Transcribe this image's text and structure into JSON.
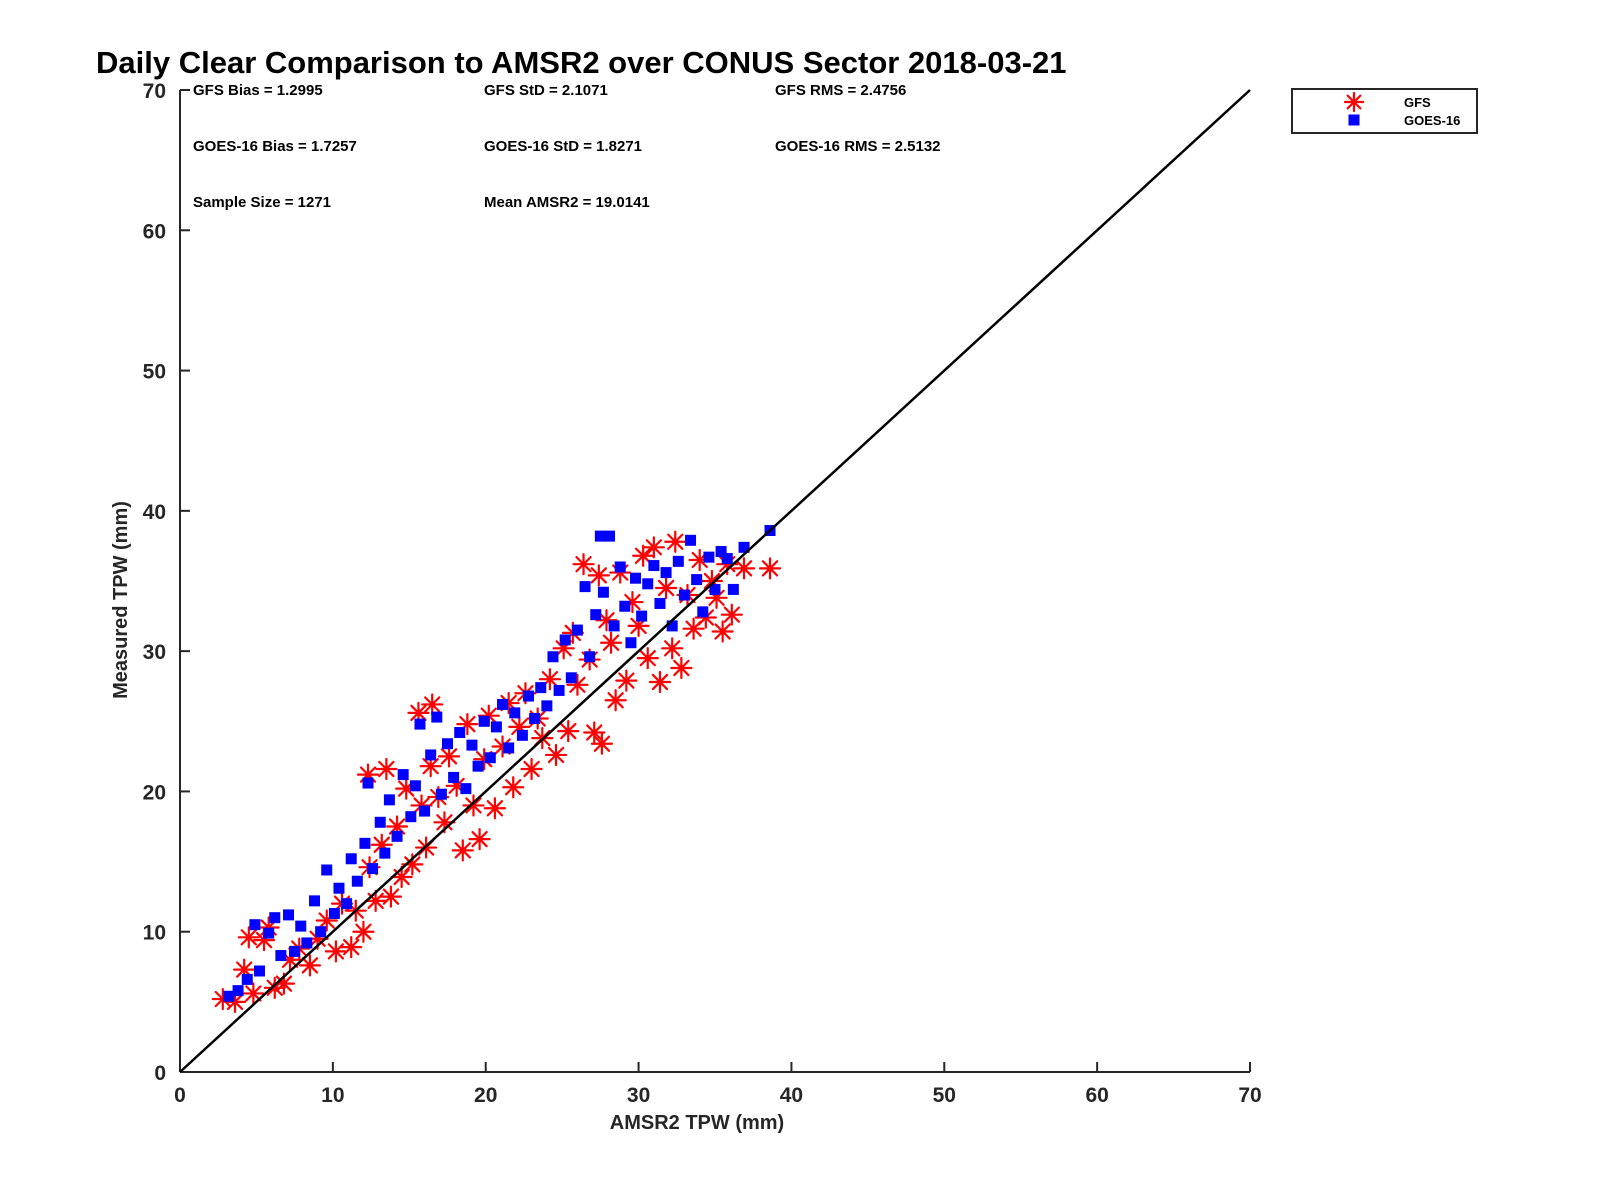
{
  "chart_data": {
    "type": "scatter",
    "title": "Daily Clear Comparison to AMSR2 over CONUS Sector 2018-03-21",
    "xlabel": "AMSR2 TPW (mm)",
    "ylabel": "Measured TPW (mm)",
    "xlim": [
      0,
      70
    ],
    "ylim": [
      0,
      70
    ],
    "xticks": [
      "0",
      "10",
      "20",
      "30",
      "40",
      "50",
      "60",
      "70"
    ],
    "yticks": [
      "0",
      "10",
      "20",
      "30",
      "40",
      "50",
      "60",
      "70"
    ],
    "reference_line": {
      "x": [
        0,
        70
      ],
      "y": [
        0,
        70
      ],
      "color": "#000000"
    },
    "legend_position": "outside-top-right",
    "stats": [
      {
        "label": "GFS Bias = 1.2995"
      },
      {
        "label": "GFS StD = 2.1071"
      },
      {
        "label": "GFS RMS = 2.4756"
      },
      {
        "label": "GOES-16 Bias = 1.7257"
      },
      {
        "label": "GOES-16 StD = 1.8271"
      },
      {
        "label": "GOES-16 RMS = 2.5132"
      },
      {
        "label": "Sample Size = 1271"
      },
      {
        "label": "Mean AMSR2 = 19.0141"
      }
    ],
    "series": [
      {
        "name": "GFS",
        "marker": "asterisk",
        "color": "#ff0000",
        "points": [
          [
            2.8,
            5.2
          ],
          [
            3.6,
            5.0
          ],
          [
            4.2,
            7.3
          ],
          [
            4.5,
            9.6
          ],
          [
            4.8,
            5.6
          ],
          [
            5.5,
            9.4
          ],
          [
            5.8,
            10.3
          ],
          [
            6.2,
            6.0
          ],
          [
            6.8,
            6.3
          ],
          [
            7.2,
            8.0
          ],
          [
            7.8,
            8.8
          ],
          [
            8.5,
            7.6
          ],
          [
            9.0,
            9.5
          ],
          [
            9.6,
            10.8
          ],
          [
            10.2,
            8.6
          ],
          [
            10.6,
            12.0
          ],
          [
            11.2,
            8.9
          ],
          [
            11.5,
            11.5
          ],
          [
            12.0,
            10.0
          ],
          [
            12.4,
            14.6
          ],
          [
            12.3,
            21.2
          ],
          [
            12.8,
            12.2
          ],
          [
            13.2,
            16.2
          ],
          [
            13.5,
            21.6
          ],
          [
            13.8,
            12.5
          ],
          [
            14.2,
            17.5
          ],
          [
            14.5,
            13.9
          ],
          [
            14.8,
            20.2
          ],
          [
            15.2,
            14.8
          ],
          [
            15.6,
            25.6
          ],
          [
            15.8,
            19.0
          ],
          [
            16.1,
            16.0
          ],
          [
            16.5,
            26.2
          ],
          [
            16.4,
            21.8
          ],
          [
            16.9,
            19.6
          ],
          [
            17.3,
            17.8
          ],
          [
            17.6,
            22.5
          ],
          [
            18.1,
            20.4
          ],
          [
            18.5,
            15.8
          ],
          [
            18.8,
            24.8
          ],
          [
            19.2,
            19.0
          ],
          [
            19.6,
            16.6
          ],
          [
            19.9,
            22.3
          ],
          [
            20.2,
            25.4
          ],
          [
            20.6,
            18.8
          ],
          [
            21.1,
            23.2
          ],
          [
            21.5,
            26.3
          ],
          [
            21.8,
            20.3
          ],
          [
            22.2,
            24.6
          ],
          [
            22.6,
            27.0
          ],
          [
            23.0,
            21.6
          ],
          [
            23.4,
            25.2
          ],
          [
            23.7,
            23.8
          ],
          [
            24.2,
            28.0
          ],
          [
            24.6,
            22.6
          ],
          [
            25.1,
            30.2
          ],
          [
            25.4,
            24.3
          ],
          [
            25.7,
            31.3
          ],
          [
            26.0,
            27.6
          ],
          [
            26.4,
            36.2
          ],
          [
            26.8,
            29.4
          ],
          [
            27.1,
            24.2
          ],
          [
            27.4,
            35.4
          ],
          [
            27.6,
            23.4
          ],
          [
            27.9,
            32.2
          ],
          [
            28.2,
            30.6
          ],
          [
            28.5,
            26.5
          ],
          [
            28.8,
            35.6
          ],
          [
            29.2,
            27.9
          ],
          [
            29.6,
            33.5
          ],
          [
            30.0,
            31.8
          ],
          [
            30.3,
            36.8
          ],
          [
            30.6,
            29.5
          ],
          [
            31.0,
            37.4
          ],
          [
            31.4,
            27.8
          ],
          [
            31.8,
            34.5
          ],
          [
            32.2,
            30.2
          ],
          [
            32.4,
            37.8
          ],
          [
            32.8,
            28.8
          ],
          [
            33.2,
            34.0
          ],
          [
            33.6,
            31.6
          ],
          [
            34.0,
            36.5
          ],
          [
            34.4,
            32.4
          ],
          [
            34.8,
            35.0
          ],
          [
            35.1,
            33.8
          ],
          [
            35.5,
            31.4
          ],
          [
            35.8,
            36.2
          ],
          [
            36.1,
            32.6
          ],
          [
            36.9,
            35.9
          ],
          [
            38.6,
            35.9
          ]
        ]
      },
      {
        "name": "GOES-16",
        "marker": "square",
        "color": "#0000ff",
        "points": [
          [
            3.2,
            5.4
          ],
          [
            3.8,
            5.8
          ],
          [
            4.4,
            6.6
          ],
          [
            4.9,
            10.5
          ],
          [
            5.2,
            7.2
          ],
          [
            5.8,
            9.9
          ],
          [
            6.2,
            11.0
          ],
          [
            6.6,
            8.3
          ],
          [
            7.1,
            11.2
          ],
          [
            7.5,
            8.6
          ],
          [
            7.9,
            10.4
          ],
          [
            8.3,
            9.2
          ],
          [
            8.8,
            12.2
          ],
          [
            9.2,
            10.0
          ],
          [
            9.6,
            14.4
          ],
          [
            10.1,
            11.3
          ],
          [
            10.4,
            13.1
          ],
          [
            10.9,
            12.0
          ],
          [
            11.2,
            15.2
          ],
          [
            11.6,
            13.6
          ],
          [
            12.1,
            16.3
          ],
          [
            12.3,
            20.6
          ],
          [
            12.6,
            14.5
          ],
          [
            13.1,
            17.8
          ],
          [
            13.4,
            15.6
          ],
          [
            13.7,
            19.4
          ],
          [
            14.2,
            16.8
          ],
          [
            14.6,
            21.2
          ],
          [
            15.1,
            18.2
          ],
          [
            15.4,
            20.4
          ],
          [
            15.7,
            24.8
          ],
          [
            16.0,
            18.6
          ],
          [
            16.4,
            22.6
          ],
          [
            16.8,
            25.3
          ],
          [
            17.1,
            19.8
          ],
          [
            17.5,
            23.4
          ],
          [
            17.9,
            21.0
          ],
          [
            18.3,
            24.2
          ],
          [
            18.7,
            20.2
          ],
          [
            19.1,
            23.3
          ],
          [
            19.5,
            21.8
          ],
          [
            19.9,
            25.0
          ],
          [
            20.3,
            22.4
          ],
          [
            20.7,
            24.6
          ],
          [
            21.1,
            26.2
          ],
          [
            21.5,
            23.1
          ],
          [
            21.9,
            25.6
          ],
          [
            22.4,
            24.0
          ],
          [
            22.8,
            26.8
          ],
          [
            23.2,
            25.2
          ],
          [
            23.6,
            27.4
          ],
          [
            24.0,
            26.1
          ],
          [
            24.4,
            29.6
          ],
          [
            24.8,
            27.2
          ],
          [
            25.2,
            30.8
          ],
          [
            25.6,
            28.1
          ],
          [
            26.0,
            31.5
          ],
          [
            26.5,
            34.6
          ],
          [
            26.8,
            29.6
          ],
          [
            27.2,
            32.6
          ],
          [
            27.5,
            38.2
          ],
          [
            27.7,
            34.2
          ],
          [
            28.1,
            38.2
          ],
          [
            28.4,
            31.8
          ],
          [
            28.8,
            36.0
          ],
          [
            29.1,
            33.2
          ],
          [
            29.5,
            30.6
          ],
          [
            29.8,
            35.2
          ],
          [
            30.2,
            32.5
          ],
          [
            30.6,
            34.8
          ],
          [
            31.0,
            36.1
          ],
          [
            31.4,
            33.4
          ],
          [
            31.8,
            35.6
          ],
          [
            32.2,
            31.8
          ],
          [
            32.6,
            36.4
          ],
          [
            33.0,
            34.0
          ],
          [
            33.4,
            37.9
          ],
          [
            33.8,
            35.1
          ],
          [
            34.2,
            32.8
          ],
          [
            34.6,
            36.7
          ],
          [
            35.0,
            34.4
          ],
          [
            35.4,
            37.1
          ],
          [
            35.8,
            36.6
          ],
          [
            36.2,
            34.4
          ],
          [
            36.9,
            37.4
          ],
          [
            38.6,
            38.6
          ]
        ]
      }
    ]
  }
}
